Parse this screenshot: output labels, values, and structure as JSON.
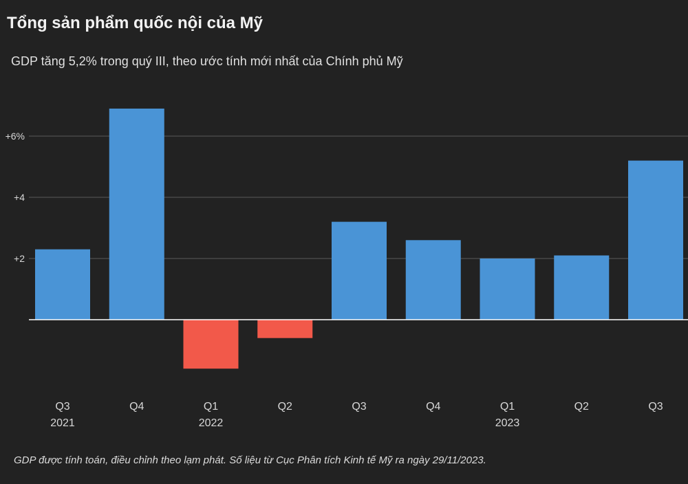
{
  "header": {
    "title": "Tổng sản phẩm quốc nội của Mỹ",
    "subtitle": "GDP tăng 5,2% trong quý III, theo ước tính mới nhất của Chính phủ Mỹ"
  },
  "footnote": "GDP được tính toán, điều chỉnh theo lạm phát. Số liệu từ Cục Phân tích Kinh tế Mỹ ra ngày 29/11/2023.",
  "colors": {
    "positive": "#4a94d6",
    "negative": "#f2594a",
    "grid": "#5a5a5a",
    "baseline": "#ffffff"
  },
  "chart_data": {
    "type": "bar",
    "categories": [
      "Q3",
      "Q4",
      "Q1",
      "Q2",
      "Q3",
      "Q4",
      "Q1",
      "Q2",
      "Q3"
    ],
    "year_labels": [
      "2021",
      "",
      "2022",
      "",
      "",
      "",
      "2023",
      "",
      ""
    ],
    "values": [
      2.3,
      6.9,
      -1.6,
      -0.6,
      3.2,
      2.6,
      2.0,
      2.1,
      5.2
    ],
    "yticks": [
      {
        "value": 2,
        "label": "+2"
      },
      {
        "value": 4,
        "label": "+4"
      },
      {
        "value": 6,
        "label": "+6%"
      }
    ],
    "ylim": [
      -2.5,
      7.5
    ],
    "grid": true,
    "xlabel": "",
    "ylabel": ""
  }
}
